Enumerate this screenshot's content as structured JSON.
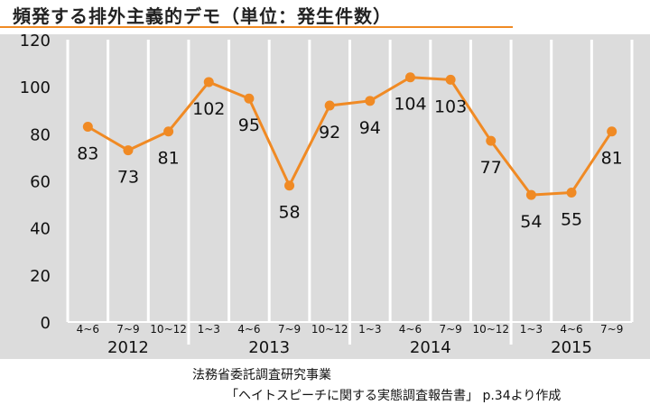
{
  "title": "頻発する排外主義的デモ（単位：発生件数）",
  "source": {
    "line1": "法務省委託調査研究事業",
    "line2": "「ヘイトスピーチに関する実態調査報告書」 p.34より作成"
  },
  "colors": {
    "accent": "#f08a24",
    "plot_background": "#dcdcdc",
    "gridline": "#ffffff"
  },
  "chart_data": {
    "type": "line",
    "title": "頻発する排外主義的デモ（単位：発生件数）",
    "categories": [
      "4~6",
      "7~9",
      "10~12",
      "1~3",
      "4~6",
      "7~9",
      "10~12",
      "1~3",
      "4~6",
      "7~9",
      "10~12",
      "1~3",
      "4~6",
      "7~9"
    ],
    "groups": [
      {
        "label": "2012",
        "count": 3
      },
      {
        "label": "2013",
        "count": 4
      },
      {
        "label": "2014",
        "count": 4
      },
      {
        "label": "2015",
        "count": 3
      }
    ],
    "values": [
      83,
      73,
      81,
      102,
      95,
      58,
      92,
      94,
      104,
      103,
      77,
      54,
      55,
      81
    ],
    "ylim": [
      0,
      120
    ],
    "yticks": [
      0,
      20,
      40,
      60,
      80,
      100,
      120
    ],
    "grid": true,
    "legend": "none",
    "data_labels": true,
    "line_color": "#f08a24"
  }
}
